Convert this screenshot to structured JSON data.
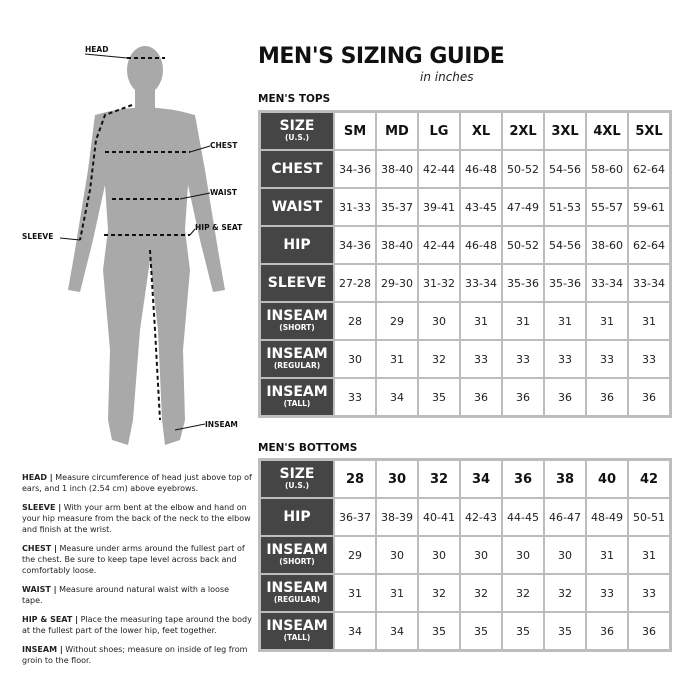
{
  "title": "MEN'S SIZING GUIDE",
  "subtitle": "in inches",
  "figure_labels": {
    "head": "HEAD",
    "chest": "CHEST",
    "waist": "WAIST",
    "hip_seat": "HIP & SEAT",
    "sleeve": "SLEEVE",
    "inseam": "INSEAM"
  },
  "tops": {
    "heading": "MEN'S TOPS",
    "rows": [
      {
        "label": "SIZE",
        "sub": "(U.S.)",
        "values": [
          "SM",
          "MD",
          "LG",
          "XL",
          "2XL",
          "3XL",
          "4XL",
          "5XL"
        ]
      },
      {
        "label": "CHEST",
        "sub": "",
        "values": [
          "34-36",
          "38-40",
          "42-44",
          "46-48",
          "50-52",
          "54-56",
          "58-60",
          "62-64"
        ]
      },
      {
        "label": "WAIST",
        "sub": "",
        "values": [
          "31-33",
          "35-37",
          "39-41",
          "43-45",
          "47-49",
          "51-53",
          "55-57",
          "59-61"
        ]
      },
      {
        "label": "HIP",
        "sub": "",
        "values": [
          "34-36",
          "38-40",
          "42-44",
          "46-48",
          "50-52",
          "54-56",
          "38-60",
          "62-64"
        ]
      },
      {
        "label": "SLEEVE",
        "sub": "",
        "values": [
          "27-28",
          "29-30",
          "31-32",
          "33-34",
          "35-36",
          "35-36",
          "33-34",
          "33-34"
        ]
      },
      {
        "label": "INSEAM",
        "sub": "(SHORT)",
        "values": [
          "28",
          "29",
          "30",
          "31",
          "31",
          "31",
          "31",
          "31"
        ]
      },
      {
        "label": "INSEAM",
        "sub": "(REGULAR)",
        "values": [
          "30",
          "31",
          "32",
          "33",
          "33",
          "33",
          "33",
          "33"
        ]
      },
      {
        "label": "INSEAM",
        "sub": "(TALL)",
        "values": [
          "33",
          "34",
          "35",
          "36",
          "36",
          "36",
          "36",
          "36"
        ]
      }
    ]
  },
  "bottoms": {
    "heading": "MEN'S BOTTOMS",
    "rows": [
      {
        "label": "SIZE",
        "sub": "(U.S.)",
        "values": [
          "28",
          "30",
          "32",
          "34",
          "36",
          "38",
          "40",
          "42"
        ]
      },
      {
        "label": "HIP",
        "sub": "",
        "values": [
          "36-37",
          "38-39",
          "40-41",
          "42-43",
          "44-45",
          "46-47",
          "48-49",
          "50-51"
        ]
      },
      {
        "label": "INSEAM",
        "sub": "(SHORT)",
        "values": [
          "29",
          "30",
          "30",
          "30",
          "30",
          "30",
          "31",
          "31"
        ]
      },
      {
        "label": "INSEAM",
        "sub": "(REGULAR)",
        "values": [
          "31",
          "31",
          "32",
          "32",
          "32",
          "32",
          "33",
          "33"
        ]
      },
      {
        "label": "INSEAM",
        "sub": "(TALL)",
        "values": [
          "34",
          "34",
          "35",
          "35",
          "35",
          "35",
          "36",
          "36"
        ]
      }
    ]
  },
  "notes": [
    {
      "term": "HEAD |",
      "text": " Measure circumference of head just above top of ears, and 1 inch (2.54 cm) above eyebrows."
    },
    {
      "term": "SLEEVE |",
      "text": " With your arm bent at the elbow and hand on your hip measure from the back of the neck to the elbow and finish at the wrist."
    },
    {
      "term": "CHEST |",
      "text": " Measure under arms around the fullest part of the chest. Be sure to keep tape level across back and comfortably loose."
    },
    {
      "term": "WAIST |",
      "text": " Measure around natural waist with a loose tape."
    },
    {
      "term": "HIP & SEAT |",
      "text": " Place the measuring tape around the body at the fullest part of the lower hip, feet together."
    },
    {
      "term": "INSEAM |",
      "text": " Without shoes; measure on inside of leg from groin to the floor."
    }
  ],
  "colors": {
    "header_cell": "#454545",
    "grid": "#bdbdbd",
    "silhouette": "#a9a9a9"
  }
}
